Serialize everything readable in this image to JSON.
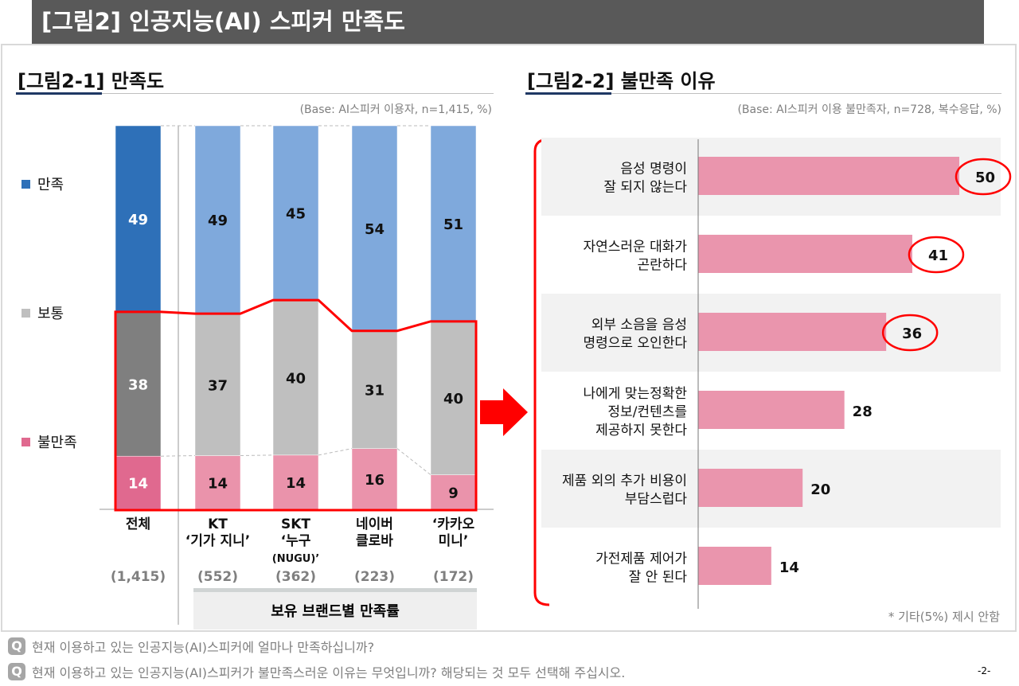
{
  "header": {
    "title": "[그림2] 인공지능(AI) 스피커 만족도"
  },
  "left": {
    "title": "[그림2-1] 만족도",
    "base": "(Base: AI스피커 이용자, n=1,415, %)",
    "brand_caption": "보유 브랜드별 만족률"
  },
  "right": {
    "title": "[그림2-2] 불만족 이유",
    "base": "(Base: AI스피커 이용 불만족자, n=728, 복수응답, %)",
    "note": "* 기타(5%) 제시 안함"
  },
  "questions": [
    "현재 이용하고 있는 인공지능(AI)스피커에 얼마나 만족하십니까?",
    "현재 이용하고 있는 인공지능(AI)스피커가 불만족스러운 이유는 무엇입니까? 해당되는 것 모두 선택해 주십시오."
  ],
  "question_icon": "Q",
  "page_number": "-2-",
  "chart_data": [
    {
      "type": "bar",
      "stacked": true,
      "title": "[그림2-1] 만족도",
      "categories": [
        [
          "전체"
        ],
        [
          "KT",
          "‘기가 지니’"
        ],
        [
          "SKT",
          "‘누구",
          "(NUGU)’"
        ],
        [
          "네이버",
          "클로바"
        ],
        [
          "‘카카오",
          "미니’"
        ]
      ],
      "counts": [
        "(1,415)",
        "(552)",
        "(362)",
        "(223)",
        "(172)"
      ],
      "series": [
        {
          "name": "불만족",
          "values": [
            14,
            14,
            14,
            16,
            9
          ],
          "color": "#ea93ab",
          "total_color": "#e0698f"
        },
        {
          "name": "보통",
          "values": [
            38,
            37,
            40,
            31,
            40
          ],
          "color": "#bfbfbf",
          "total_color": "#7f7f7f"
        },
        {
          "name": "만족",
          "values": [
            49,
            49,
            45,
            54,
            51
          ],
          "color": "#7fa9dc",
          "total_color": "#2e70b8"
        }
      ],
      "legend": "left",
      "ylim": [
        0,
        100
      ]
    },
    {
      "type": "bar",
      "orientation": "horizontal",
      "title": "[그림2-2] 불만족 이유",
      "categories": [
        [
          "음성 명령이",
          "잘 되지 않는다"
        ],
        [
          "자연스러운 대화가",
          "곤란하다"
        ],
        [
          "외부 소음을 음성",
          "명령으로 오인한다"
        ],
        [
          "나에게 맞는정확한",
          "정보/컨텐츠를",
          "제공하지 못한다"
        ],
        [
          "제품 외의 추가 비용이",
          "부담스럽다"
        ],
        [
          "가전제품 제어가",
          "잘 안 된다"
        ]
      ],
      "values": [
        50,
        41,
        36,
        28,
        20,
        14
      ],
      "color": "#ea95ad",
      "highlighted": [
        50,
        41,
        36
      ],
      "xlim": [
        0,
        50
      ]
    }
  ]
}
